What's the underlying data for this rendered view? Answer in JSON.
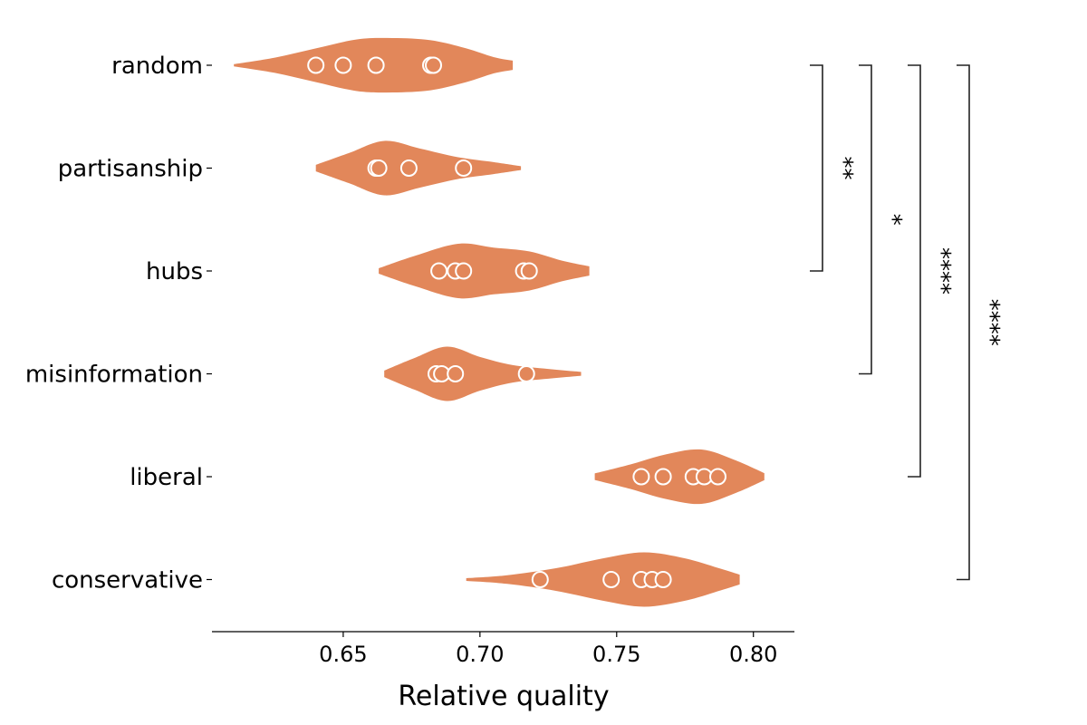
{
  "chart_data": {
    "type": "violin",
    "orientation": "horizontal",
    "xlabel": "Relative quality",
    "xlim": [
      0.602,
      0.815
    ],
    "x_ticks": [
      {
        "value": 0.65,
        "label": "0.65"
      },
      {
        "value": 0.7,
        "label": "0.70"
      },
      {
        "value": 0.75,
        "label": "0.75"
      },
      {
        "value": 0.8,
        "label": "0.80"
      }
    ],
    "violin_color": "#e2875a",
    "point_edge_color": "#ffffff",
    "categories": [
      "random",
      "partisanship",
      "hubs",
      "misinformation",
      "liberal",
      "conservative"
    ],
    "groups": [
      {
        "name": "random",
        "points": [
          0.64,
          0.65,
          0.662,
          0.682,
          0.683
        ],
        "extent": [
          0.61,
          0.712
        ],
        "profile": [
          [
            0.61,
            0.04
          ],
          [
            0.625,
            0.28
          ],
          [
            0.64,
            0.62
          ],
          [
            0.655,
            0.95
          ],
          [
            0.668,
            1.0
          ],
          [
            0.682,
            0.92
          ],
          [
            0.695,
            0.62
          ],
          [
            0.705,
            0.3
          ],
          [
            0.712,
            0.17
          ]
        ]
      },
      {
        "name": "partisanship",
        "points": [
          0.662,
          0.663,
          0.674,
          0.694
        ],
        "extent": [
          0.64,
          0.715
        ],
        "profile": [
          [
            0.64,
            0.12
          ],
          [
            0.652,
            0.55
          ],
          [
            0.665,
            1.0
          ],
          [
            0.678,
            0.72
          ],
          [
            0.692,
            0.4
          ],
          [
            0.705,
            0.22
          ],
          [
            0.715,
            0.07
          ]
        ]
      },
      {
        "name": "hubs",
        "points": [
          0.685,
          0.691,
          0.694,
          0.716,
          0.718
        ],
        "extent": [
          0.663,
          0.74
        ],
        "profile": [
          [
            0.663,
            0.1
          ],
          [
            0.676,
            0.55
          ],
          [
            0.692,
            1.0
          ],
          [
            0.705,
            0.86
          ],
          [
            0.718,
            0.72
          ],
          [
            0.73,
            0.38
          ],
          [
            0.74,
            0.17
          ]
        ]
      },
      {
        "name": "misinformation",
        "points": [
          0.684,
          0.686,
          0.691,
          0.717
        ],
        "extent": [
          0.665,
          0.737
        ],
        "profile": [
          [
            0.665,
            0.12
          ],
          [
            0.676,
            0.58
          ],
          [
            0.688,
            1.0
          ],
          [
            0.7,
            0.62
          ],
          [
            0.712,
            0.32
          ],
          [
            0.725,
            0.18
          ],
          [
            0.737,
            0.07
          ]
        ]
      },
      {
        "name": "liberal",
        "points": [
          0.759,
          0.767,
          0.778,
          0.782,
          0.787
        ],
        "extent": [
          0.742,
          0.804
        ],
        "profile": [
          [
            0.742,
            0.12
          ],
          [
            0.755,
            0.45
          ],
          [
            0.768,
            0.82
          ],
          [
            0.781,
            1.0
          ],
          [
            0.793,
            0.62
          ],
          [
            0.804,
            0.13
          ]
        ]
      },
      {
        "name": "conservative",
        "points": [
          0.722,
          0.748,
          0.759,
          0.763,
          0.767
        ],
        "extent": [
          0.695,
          0.795
        ],
        "profile": [
          [
            0.695,
            0.05
          ],
          [
            0.71,
            0.16
          ],
          [
            0.728,
            0.42
          ],
          [
            0.745,
            0.78
          ],
          [
            0.76,
            1.0
          ],
          [
            0.775,
            0.78
          ],
          [
            0.788,
            0.4
          ],
          [
            0.795,
            0.18
          ]
        ]
      }
    ],
    "significance": [
      {
        "from": "random",
        "to": "hubs",
        "label": "**"
      },
      {
        "from": "random",
        "to": "misinformation",
        "label": "*"
      },
      {
        "from": "random",
        "to": "liberal",
        "label": "****"
      },
      {
        "from": "random",
        "to": "conservative",
        "label": "****"
      }
    ]
  }
}
